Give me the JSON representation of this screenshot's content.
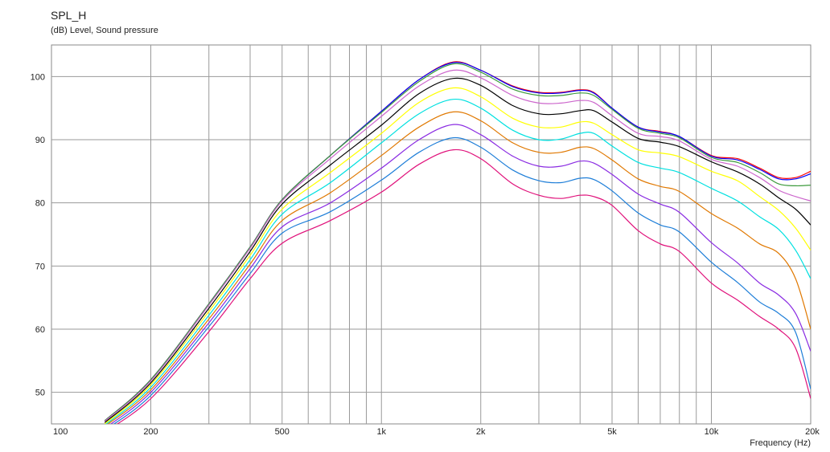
{
  "chart_data": {
    "type": "line",
    "title": "SPL_H",
    "subtitle": "(dB)  Level, Sound pressure",
    "xlabel": "Frequency  (Hz)",
    "x_scale": "log",
    "xlim": [
      100,
      20000
    ],
    "ylim": [
      45,
      105
    ],
    "x_tick_labels": [
      {
        "value": 100,
        "label": "100"
      },
      {
        "value": 200,
        "label": "200"
      },
      {
        "value": 500,
        "label": "500"
      },
      {
        "value": 1000,
        "label": "1k"
      },
      {
        "value": 2000,
        "label": "2k"
      },
      {
        "value": 5000,
        "label": "5k"
      },
      {
        "value": 10000,
        "label": "10k"
      },
      {
        "value": 20000,
        "label": "20k"
      }
    ],
    "y_ticks": [
      50,
      60,
      70,
      80,
      90,
      100
    ],
    "grid": true,
    "legend": "none",
    "x": [
      145,
      200,
      300,
      400,
      500,
      700,
      1000,
      1300,
      1650,
      2000,
      2500,
      3000,
      3500,
      4000,
      4400,
      5000,
      6000,
      7000,
      8000,
      10000,
      12000,
      14000,
      16000,
      18000,
      20000
    ],
    "series": [
      {
        "color": "#ff0000",
        "values": [
          45.5,
          52,
          64,
          73,
          80.5,
          87.5,
          94.5,
          99.5,
          102.3,
          101,
          98.5,
          97.5,
          97.5,
          97.9,
          97.5,
          95,
          92,
          91.3,
          90.5,
          87.5,
          87,
          85.5,
          84,
          84,
          85
        ]
      },
      {
        "color": "#0000ff",
        "values": [
          45.5,
          52,
          64,
          73,
          80.5,
          87.5,
          94.5,
          99.5,
          102.2,
          101,
          98.4,
          97.4,
          97.4,
          97.8,
          97.4,
          95,
          92,
          91.2,
          90.5,
          87.4,
          86.8,
          85.3,
          83.8,
          83.8,
          84.6
        ]
      },
      {
        "color": "#3c9a3c",
        "values": [
          45.5,
          52,
          64,
          73,
          80.5,
          87.5,
          94.3,
          99.2,
          102,
          100.7,
          98,
          97,
          97,
          97.4,
          97,
          94.8,
          91.8,
          91,
          90.3,
          87.2,
          86.4,
          84.8,
          83,
          82.7,
          82.8
        ]
      },
      {
        "color": "#cc66cc",
        "values": [
          45.4,
          51.8,
          63.8,
          72.8,
          80.3,
          87,
          93.7,
          98.5,
          101,
          99.8,
          97,
          95.8,
          95.8,
          96.2,
          95.9,
          93.8,
          91,
          90.5,
          89.8,
          86.9,
          85.8,
          84,
          82,
          81,
          80.3
        ]
      },
      {
        "color": "#000000",
        "values": [
          45.2,
          51.5,
          63.3,
          72.3,
          79.8,
          86,
          92.3,
          97.3,
          99.7,
          98.6,
          95.4,
          94.1,
          94.1,
          94.6,
          94.6,
          92.8,
          90.2,
          89.6,
          88.9,
          86.5,
          84.9,
          83,
          80.8,
          79,
          76.5
        ]
      },
      {
        "color": "#ffff00",
        "values": [
          45,
          51.2,
          62.8,
          71.7,
          79,
          84.8,
          91,
          95.9,
          98.2,
          96.8,
          93.4,
          92,
          92,
          92.8,
          92.6,
          90.8,
          88.4,
          87.9,
          87.3,
          85,
          83.5,
          81,
          78.8,
          76,
          72.5
        ]
      },
      {
        "color": "#00e0e0",
        "values": [
          44.8,
          50.8,
          62.2,
          71,
          78.2,
          83.2,
          89.5,
          94.1,
          96.4,
          95,
          91.5,
          90,
          90.1,
          91,
          91,
          89,
          86.4,
          85.5,
          84.8,
          82.3,
          80.3,
          77.8,
          75.8,
          72.5,
          68
        ]
      },
      {
        "color": "#e07800",
        "values": [
          44.6,
          50.4,
          61.6,
          70.3,
          77.2,
          81.6,
          87.5,
          92,
          94.4,
          93,
          89.5,
          88,
          88,
          88.8,
          88.6,
          86.8,
          83.8,
          82.6,
          81.8,
          78.3,
          76,
          73.5,
          72,
          68,
          60
        ]
      },
      {
        "color": "#8a2be2",
        "values": [
          44.3,
          50,
          61,
          69.6,
          76.2,
          80,
          85.5,
          90,
          92.4,
          90.8,
          87.4,
          85.8,
          85.8,
          86.6,
          86.3,
          84.5,
          81.4,
          79.8,
          78.5,
          73.7,
          70.5,
          67.3,
          65.4,
          62.5,
          56.5
        ]
      },
      {
        "color": "#1e7ed8",
        "values": [
          44,
          49.5,
          60.4,
          68.8,
          75.2,
          78.6,
          83.6,
          88,
          90.3,
          88.8,
          85.2,
          83.5,
          83.2,
          83.9,
          83.7,
          81.9,
          78.4,
          76.5,
          75.4,
          70.6,
          67.4,
          64.3,
          62.5,
          59.5,
          50.5
        ]
      },
      {
        "color": "#e0107a",
        "values": [
          43.7,
          49,
          59.6,
          68,
          73.6,
          77.2,
          81.7,
          86.1,
          88.4,
          87,
          83,
          81.2,
          80.7,
          81.2,
          81,
          79.6,
          75.6,
          73.5,
          72.3,
          67.3,
          64.6,
          62,
          60,
          57,
          49
        ]
      }
    ]
  }
}
